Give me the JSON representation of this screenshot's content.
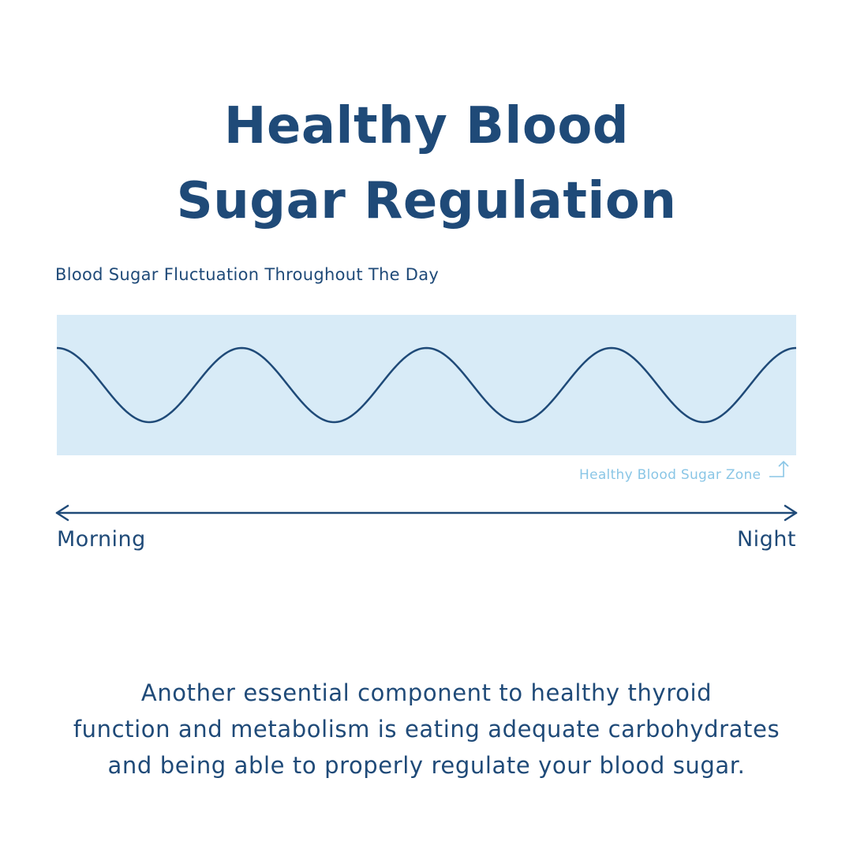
{
  "title": {
    "line1": "Healthy Blood",
    "line2": "Sugar Regulation"
  },
  "diagram": {
    "caption": "Blood Sugar Fluctuation Throughout The Day",
    "zone_label": "Healthy Blood Sugar Zone",
    "axis_start": "Morning",
    "axis_end": "Night",
    "wave_cycles": 4,
    "colors": {
      "zone_fill": "#d8ebf7",
      "wave_stroke": "#1f4a78",
      "zone_label": "#8ac6e6",
      "axis": "#1f4a78"
    }
  },
  "body": {
    "line1": "Another essential component to healthy thyroid",
    "line2": "function and metabolism is eating adequate carbohydrates",
    "line3": "and being able to properly regulate your blood sugar."
  }
}
